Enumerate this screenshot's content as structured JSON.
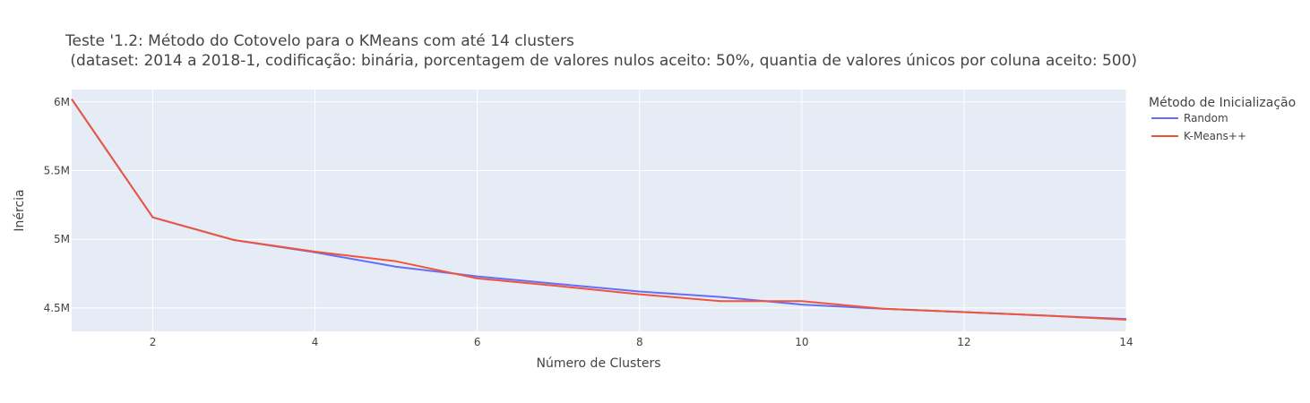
{
  "chart_data": {
    "type": "line",
    "title_line1": "Teste '1.2: Método do Cotovelo para o KMeans com até 14 clusters",
    "title_line2": " (dataset: 2014 a 2018-1, codificação: binária, porcentagem de valores nulos aceito: 50%, quantia de valores únicos por coluna aceito: 500)",
    "xlabel": "Número de Clusters",
    "ylabel": "Inércia",
    "xlim": [
      1,
      14
    ],
    "ylim": [
      4330000,
      6090000
    ],
    "x_ticks": [
      2,
      4,
      6,
      8,
      10,
      12,
      14
    ],
    "y_ticks": [
      4500000,
      5000000,
      5500000,
      6000000
    ],
    "y_tick_labels": [
      "4.5M",
      "5M",
      "5.5M",
      "6M"
    ],
    "grid": true,
    "plot_bg": "#e5ecf6",
    "legend": {
      "title": "Método de Inicialização",
      "placement": "top-right outside"
    },
    "x": [
      1,
      2,
      3,
      4,
      5,
      6,
      7,
      8,
      9,
      10,
      11,
      12,
      13,
      14
    ],
    "series": [
      {
        "name": "Random",
        "color": "#636efa",
        "values": [
          6020000,
          5160000,
          4995000,
          4905000,
          4800000,
          4730000,
          4675000,
          4620000,
          4580000,
          4525000,
          4495000,
          4470000,
          4445000,
          4420000
        ]
      },
      {
        "name": "K-Means++",
        "color": "#ef553b",
        "values": [
          6020000,
          5160000,
          4995000,
          4910000,
          4840000,
          4715000,
          4660000,
          4600000,
          4550000,
          4550000,
          4495000,
          4470000,
          4445000,
          4415000
        ]
      }
    ]
  }
}
